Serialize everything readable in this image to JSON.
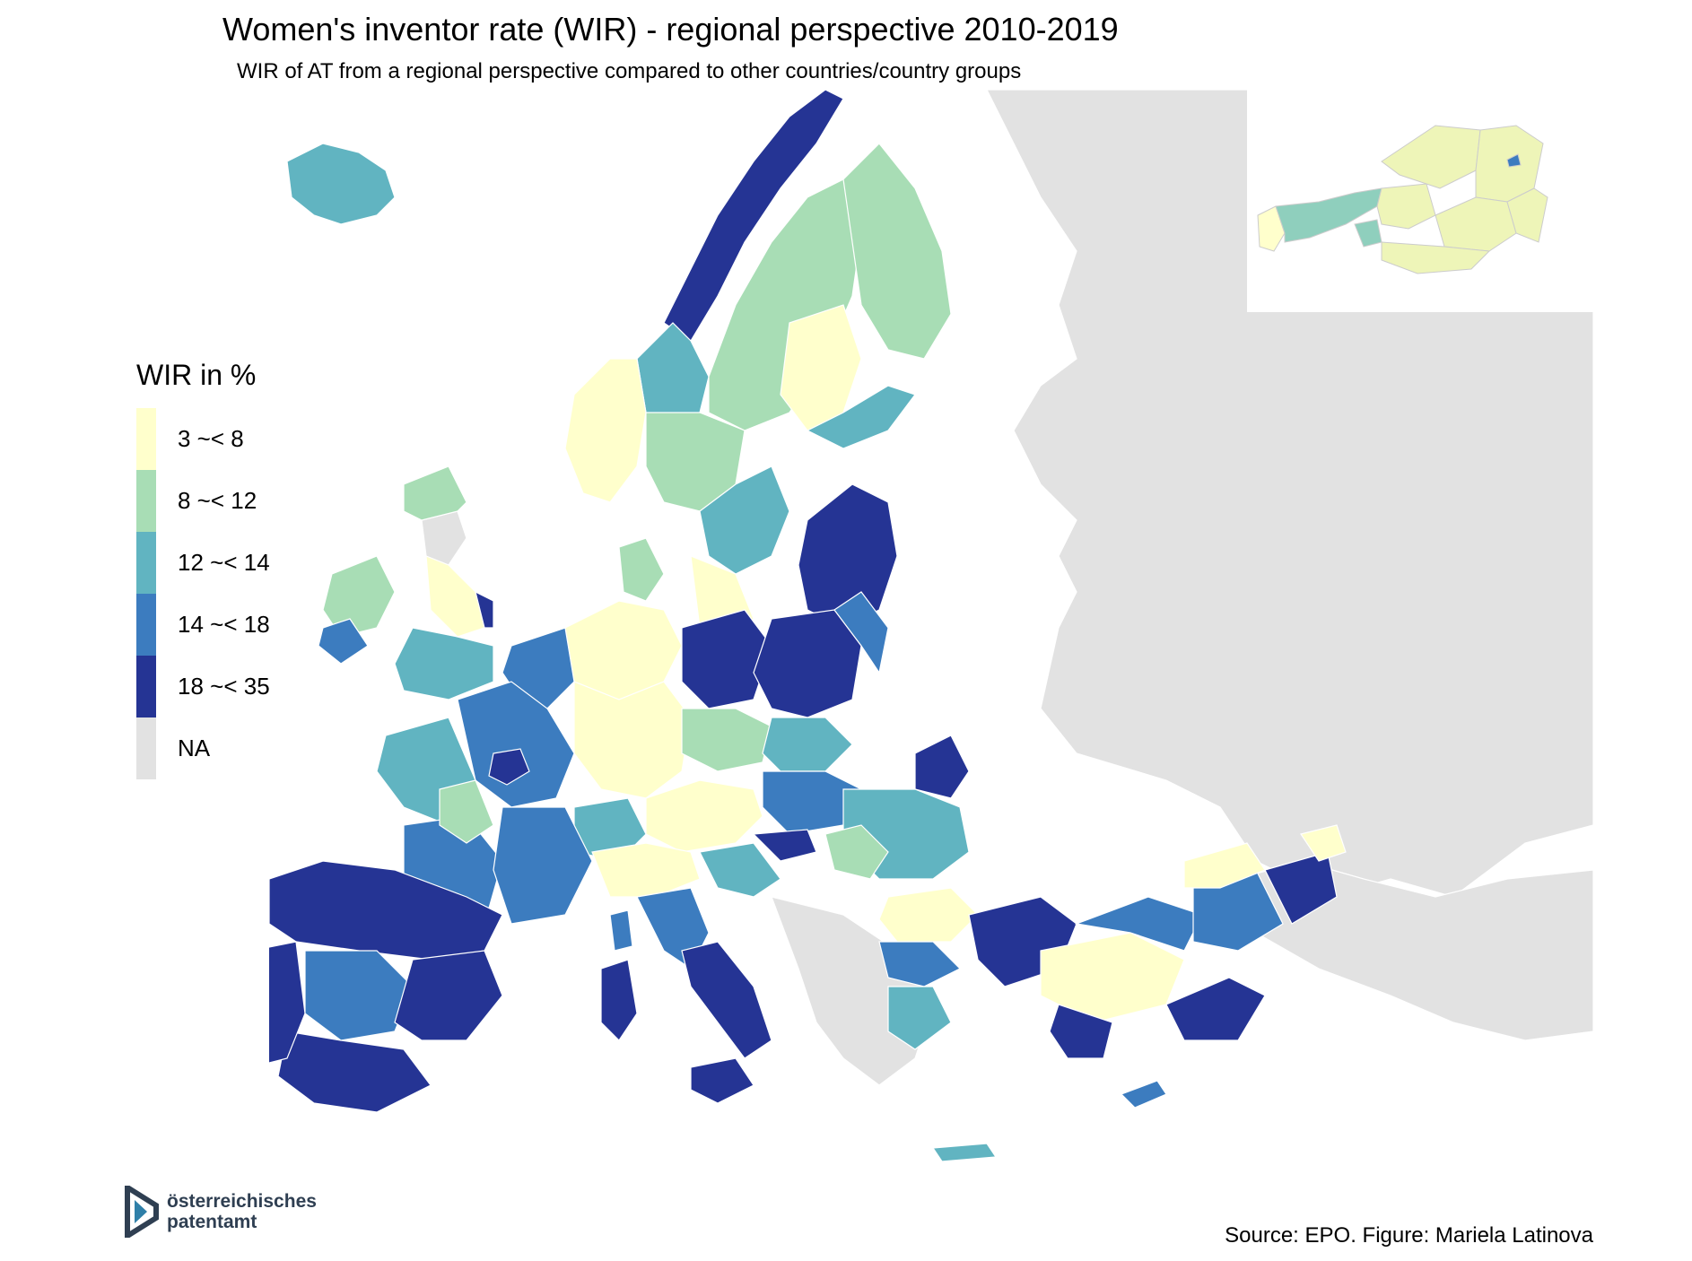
{
  "title": "Women's inventor rate (WIR) - regional perspective 2010-2019",
  "subtitle": "WIR of AT from a regional perspective compared to other countries/country groups",
  "legend": {
    "title": "WIR in %",
    "items": [
      {
        "label": "3 ~< 8",
        "color": "#ffffcc"
      },
      {
        "label": "8 ~< 12",
        "color": "#a8ddb5"
      },
      {
        "label": "12 ~< 14",
        "color": "#61b4c1"
      },
      {
        "label": "14 ~< 18",
        "color": "#3c7cbf"
      },
      {
        "label": "18 ~< 35",
        "color": "#253494"
      },
      {
        "label": "NA",
        "color": "#e2e2e2"
      }
    ]
  },
  "logo": {
    "line1": "österreichisches",
    "line2": "patentamt"
  },
  "source": "Source: EPO. Figure: Mariela Latinova",
  "colors": {
    "na": "#e2e2e2",
    "sea": "#ffffff",
    "border": "#ffffff"
  }
}
